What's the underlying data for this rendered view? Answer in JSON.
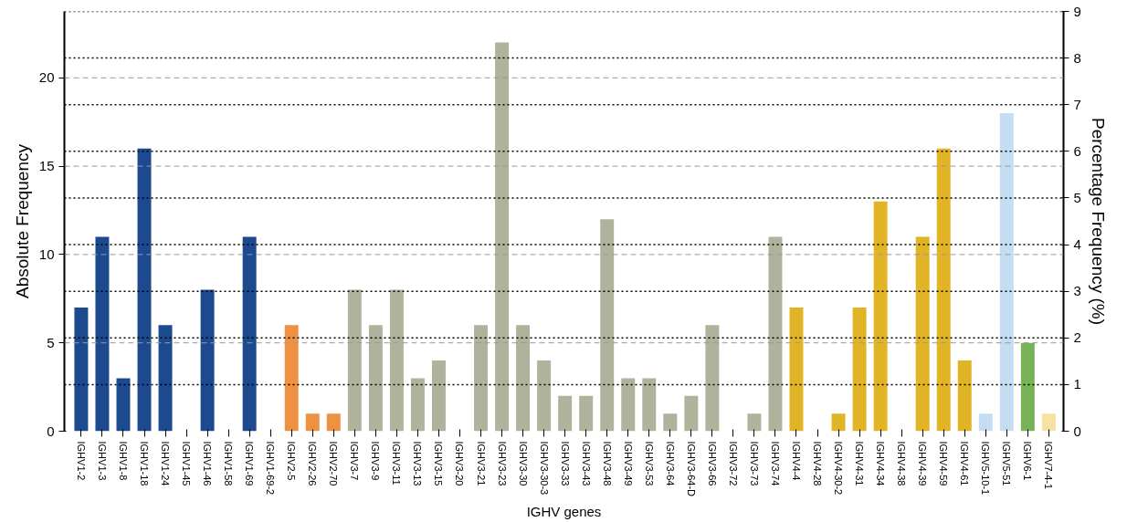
{
  "chart_data": {
    "type": "bar",
    "xlabel": "IGHV genes",
    "ylabel": "Absolute Frequency",
    "y2label": "Percentage Frequency (%)",
    "categories": [
      "IGHV1-2",
      "IGHV1-3",
      "IGHV1-8",
      "IGHV1-18",
      "IGHV1-24",
      "IGHV1-45",
      "IGHV1-46",
      "IGHV1-58",
      "IGHV1-69",
      "IGHV1-69-2",
      "IGHV2-5",
      "IGHV2-26",
      "IGHV2-70",
      "IGHV3-7",
      "IGHV3-9",
      "IGHV3-11",
      "IGHV3-13",
      "IGHV3-15",
      "IGHV3-20",
      "IGHV3-21",
      "IGHV3-23",
      "IGHV3-30",
      "IGHV3-30-3",
      "IGHV3-33",
      "IGHV3-43",
      "IGHV3-48",
      "IGHV3-49",
      "IGHV3-53",
      "IGHV3-64",
      "IGHV3-64-D",
      "IGHV3-66",
      "IGHV3-72",
      "IGHV3-73",
      "IGHV3-74",
      "IGHV4-4",
      "IGHV4-28",
      "IGHV4-30-2",
      "IGHV4-31",
      "IGHV4-34",
      "IGHV4-38",
      "IGHV4-39",
      "IGHV4-59",
      "IGHV4-61",
      "IGHV5-10-1",
      "IGHV5-51",
      "IGHV6-1",
      "IGHV7-4-1"
    ],
    "values": [
      7,
      11,
      3,
      16,
      6,
      0,
      8,
      0,
      11,
      0,
      6,
      1,
      1,
      8,
      6,
      8,
      3,
      4,
      0,
      6,
      22,
      6,
      4,
      2,
      2,
      12,
      3,
      3,
      1,
      2,
      6,
      0,
      1,
      11,
      7,
      0,
      1,
      7,
      13,
      0,
      11,
      16,
      4,
      1,
      18,
      5,
      1
    ],
    "colors": [
      "#1d4a8f",
      "#1d4a8f",
      "#1d4a8f",
      "#1d4a8f",
      "#1d4a8f",
      "#1d4a8f",
      "#1d4a8f",
      "#1d4a8f",
      "#1d4a8f",
      "#1d4a8f",
      "#ef9142",
      "#ef9142",
      "#ef9142",
      "#b0b29c",
      "#b0b29c",
      "#b0b29c",
      "#b0b29c",
      "#b0b29c",
      "#b0b29c",
      "#b0b29c",
      "#b0b29c",
      "#b0b29c",
      "#b0b29c",
      "#b0b29c",
      "#b0b29c",
      "#b0b29c",
      "#b0b29c",
      "#b0b29c",
      "#b0b29c",
      "#b0b29c",
      "#b0b29c",
      "#b0b29c",
      "#b0b29c",
      "#b0b29c",
      "#e0b424",
      "#e0b424",
      "#e0b424",
      "#e0b424",
      "#e0b424",
      "#e0b424",
      "#e0b424",
      "#e0b424",
      "#e0b424",
      "#c5ddf3",
      "#c5ddf3",
      "#77b356",
      "#f6e2a2"
    ],
    "ylim": [
      0,
      23.76
    ],
    "yticks": [
      0,
      5,
      10,
      15,
      20
    ],
    "y2lim": [
      0,
      9
    ],
    "y2ticks": [
      0,
      1,
      2,
      3,
      4,
      5,
      6,
      7,
      8,
      9
    ],
    "grid": true
  }
}
